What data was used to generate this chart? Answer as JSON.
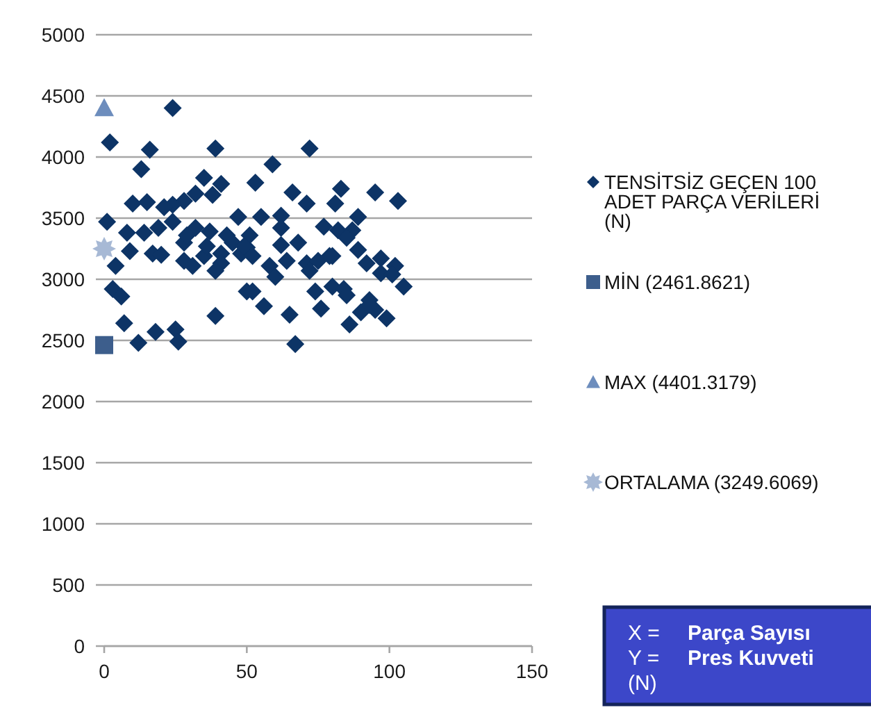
{
  "chart_data": {
    "type": "scatter",
    "xlabel": "X = Parça Sayısı",
    "ylabel": "Y = Pres Kuvveti (N)",
    "xlim": [
      0,
      150
    ],
    "ylim": [
      0,
      5000
    ],
    "xticks": [
      0,
      50,
      100,
      150
    ],
    "yticks": [
      0,
      500,
      1000,
      1500,
      2000,
      2500,
      3000,
      3500,
      4000,
      4500,
      5000
    ],
    "grid": "y",
    "legend": "right",
    "series": [
      {
        "name": "TENSİTSİZ GEÇEN 100 ADET PARÇA VERİLERİ (N)",
        "color": "#0d3466",
        "marker": "diamond",
        "x": [
          24,
          2,
          16,
          39,
          13,
          35,
          41,
          32,
          38,
          28,
          24,
          21,
          10,
          15,
          47,
          1,
          19,
          14,
          8,
          32,
          37,
          43,
          9,
          17,
          20,
          28,
          28,
          31,
          35,
          41,
          4,
          3,
          6,
          50,
          39,
          7,
          12,
          18,
          25,
          26,
          72,
          59,
          53,
          66,
          71,
          83,
          81,
          95,
          103,
          55,
          62,
          77,
          82,
          89,
          87,
          51,
          62,
          68,
          48,
          50,
          58,
          60,
          64,
          71,
          75,
          79,
          72,
          92,
          97,
          97,
          102,
          105,
          52,
          56,
          65,
          67,
          74,
          76,
          80,
          84,
          85,
          86,
          93,
          90,
          95,
          99,
          93,
          41,
          45,
          49,
          36,
          29,
          24,
          39,
          52,
          62,
          85,
          80,
          89,
          101
        ],
        "values": [
          4400,
          4120,
          4060,
          4070,
          3900,
          3830,
          3780,
          3700,
          3690,
          3640,
          3610,
          3590,
          3620,
          3630,
          3510,
          3470,
          3420,
          3380,
          3380,
          3420,
          3390,
          3360,
          3230,
          3210,
          3200,
          3300,
          3150,
          3110,
          3190,
          3210,
          3110,
          2920,
          2860,
          2900,
          2700,
          2640,
          2480,
          2570,
          2590,
          2490,
          4070,
          3940,
          3790,
          3710,
          3620,
          3740,
          3620,
          3710,
          3640,
          3510,
          3520,
          3430,
          3400,
          3510,
          3400,
          3360,
          3280,
          3300,
          3210,
          3260,
          3110,
          3020,
          3150,
          3130,
          3150,
          3190,
          3070,
          3130,
          3170,
          3050,
          3110,
          2940,
          2900,
          2780,
          2710,
          2470,
          2900,
          2760,
          2940,
          2920,
          2870,
          2630,
          2830,
          2730,
          2750,
          2680,
          2790,
          3130,
          3300,
          3270,
          3270,
          3360,
          3470,
          3070,
          3190,
          3420,
          3340,
          3190,
          3240,
          3040
        ]
      },
      {
        "name": "MİN (2461.8621)",
        "color": "#3d5e8c",
        "marker": "square",
        "x": [
          0
        ],
        "values": [
          2461.8621
        ]
      },
      {
        "name": "MAX (4401.3179)",
        "color": "#6d8dbd",
        "marker": "triangle",
        "x": [
          0
        ],
        "values": [
          4401.3179
        ]
      },
      {
        "name": "ORTALAMA (3249.6069)",
        "color": "#a7b9d5",
        "marker": "star",
        "x": [
          0
        ],
        "values": [
          3249.6069
        ]
      }
    ]
  }
}
